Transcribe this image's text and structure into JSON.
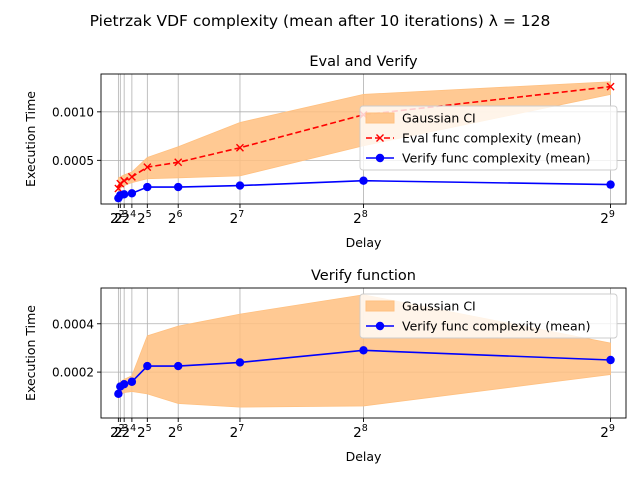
{
  "figure": {
    "suptitle": "Pietrzak VDF complexity (mean after 10 iterations) λ = 128"
  },
  "chart_data": [
    {
      "type": "line",
      "title": "Eval and Verify",
      "xlabel": "Delay",
      "ylabel": "Execution Time",
      "xlim": [
        -16,
        528
      ],
      "ylim": [
        5e-05,
        0.00139
      ],
      "x_ticks": [
        2,
        4,
        8,
        16,
        32,
        64,
        128,
        256,
        512
      ],
      "x_tick_labels": [
        {
          "base": "2",
          "exp": ""
        },
        {
          "base": "2",
          "exp": "2"
        },
        {
          "base": "2",
          "exp": "3"
        },
        {
          "base": "2",
          "exp": "4"
        },
        {
          "base": "2",
          "exp": "5"
        },
        {
          "base": "2",
          "exp": "6"
        },
        {
          "base": "2",
          "exp": "7"
        },
        {
          "base": "2",
          "exp": "8"
        },
        {
          "base": "2",
          "exp": "9"
        }
      ],
      "y_ticks": [
        0.0005,
        0.001
      ],
      "y_tick_labels": [
        "0.0005",
        "0.0010"
      ],
      "grid": true,
      "legend_position": "center-right",
      "x": [
        2,
        4,
        8,
        16,
        32,
        64,
        128,
        256,
        512
      ],
      "series": [
        {
          "name": "Gaussian CI",
          "kind": "band",
          "color": "#ffc080",
          "lower": [
            0.00018,
            0.00021,
            0.00024,
            0.00027,
            0.00031,
            0.00032,
            0.00034,
            0.00065,
            0.00118
          ],
          "upper": [
            0.00032,
            0.00033,
            0.00035,
            0.00038,
            0.00053,
            0.00064,
            0.00089,
            0.00118,
            0.00131
          ]
        },
        {
          "name": "Eval func complexity (mean)",
          "kind": "line",
          "color": "#ff0000",
          "dash": "dashed",
          "marker": "x",
          "values": [
            0.00021,
            0.00026,
            0.00029,
            0.00033,
            0.00043,
            0.00048,
            0.00063,
            0.00097,
            0.00126
          ]
        },
        {
          "name": "Verify func complexity (mean)",
          "kind": "line",
          "color": "#0000ff",
          "dash": "solid",
          "marker": "o",
          "values": [
            0.00011,
            0.00014,
            0.00015,
            0.00016,
            0.000225,
            0.000225,
            0.00024,
            0.00029,
            0.00025
          ]
        }
      ]
    },
    {
      "type": "line",
      "title": "Verify function",
      "xlabel": "Delay",
      "ylabel": "Execution Time",
      "xlim": [
        -16,
        528
      ],
      "ylim": [
        1e-05,
        0.000548
      ],
      "x_ticks": [
        2,
        4,
        8,
        16,
        32,
        64,
        128,
        256,
        512
      ],
      "x_tick_labels": [
        {
          "base": "2",
          "exp": ""
        },
        {
          "base": "2",
          "exp": "2"
        },
        {
          "base": "2",
          "exp": "3"
        },
        {
          "base": "2",
          "exp": "4"
        },
        {
          "base": "2",
          "exp": "5"
        },
        {
          "base": "2",
          "exp": "6"
        },
        {
          "base": "2",
          "exp": "7"
        },
        {
          "base": "2",
          "exp": "8"
        },
        {
          "base": "2",
          "exp": "9"
        }
      ],
      "y_ticks": [
        0.0002,
        0.0004
      ],
      "y_tick_labels": [
        "0.0002",
        "0.0004"
      ],
      "grid": true,
      "legend_position": "upper-right",
      "x": [
        2,
        4,
        8,
        16,
        32,
        64,
        128,
        256,
        512
      ],
      "series": [
        {
          "name": "Gaussian CI",
          "kind": "band",
          "color": "#ffc080",
          "lower": [
            9e-05,
            0.000105,
            0.000115,
            0.00012,
            0.00011,
            7e-05,
            5.5e-05,
            6e-05,
            0.00019
          ],
          "upper": [
            0.00014,
            0.00016,
            0.00017,
            0.000185,
            0.00035,
            0.00039,
            0.00044,
            0.00052,
            0.00032
          ]
        },
        {
          "name": "Verify func complexity (mean)",
          "kind": "line",
          "color": "#0000ff",
          "dash": "solid",
          "marker": "o",
          "values": [
            0.00011,
            0.00014,
            0.00015,
            0.00016,
            0.000225,
            0.000225,
            0.00024,
            0.00029,
            0.00025
          ]
        }
      ]
    }
  ]
}
